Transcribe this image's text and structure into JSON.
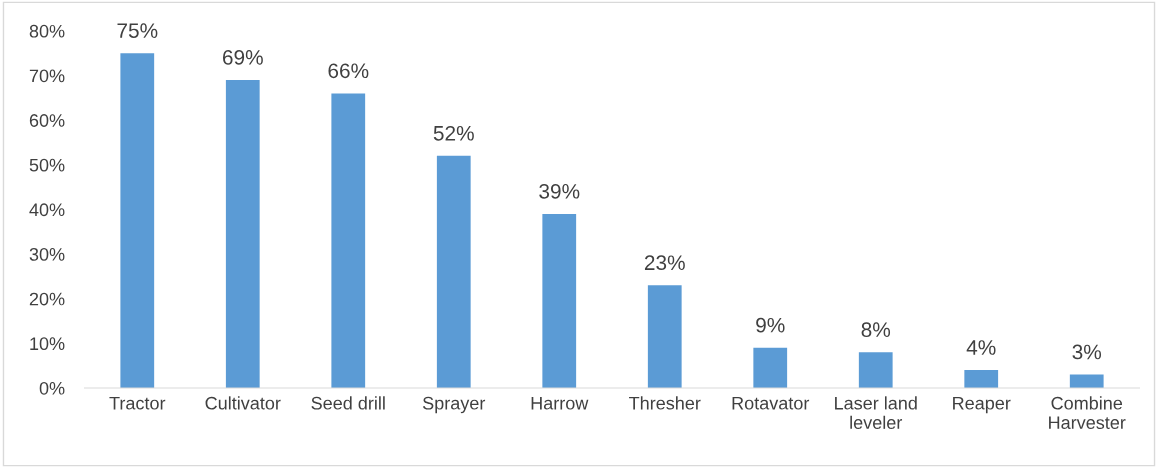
{
  "chart_data": {
    "type": "bar",
    "categories": [
      "Tractor",
      "Cultivator",
      "Seed drill",
      "Sprayer",
      "Harrow",
      "Thresher",
      "Rotavator",
      "Laser land\nleveler",
      "Reaper",
      "Combine\nHarvester"
    ],
    "values": [
      75,
      69,
      66,
      52,
      39,
      23,
      9,
      8,
      4,
      3
    ],
    "value_labels": [
      "75%",
      "69%",
      "66%",
      "52%",
      "39%",
      "23%",
      "9%",
      "8%",
      "4%",
      "3%"
    ],
    "color": "#5b9bd5",
    "ylim": [
      0,
      80
    ],
    "yticks": [
      {
        "value": 0,
        "label": "0%"
      },
      {
        "value": 10,
        "label": "10%"
      },
      {
        "value": 20,
        "label": "20%"
      },
      {
        "value": 30,
        "label": "30%"
      },
      {
        "value": 40,
        "label": "40%"
      },
      {
        "value": 50,
        "label": "50%"
      },
      {
        "value": 60,
        "label": "60%"
      },
      {
        "value": 70,
        "label": "70%"
      },
      {
        "value": 80,
        "label": "80%"
      }
    ],
    "grid": false,
    "legend": false
  }
}
